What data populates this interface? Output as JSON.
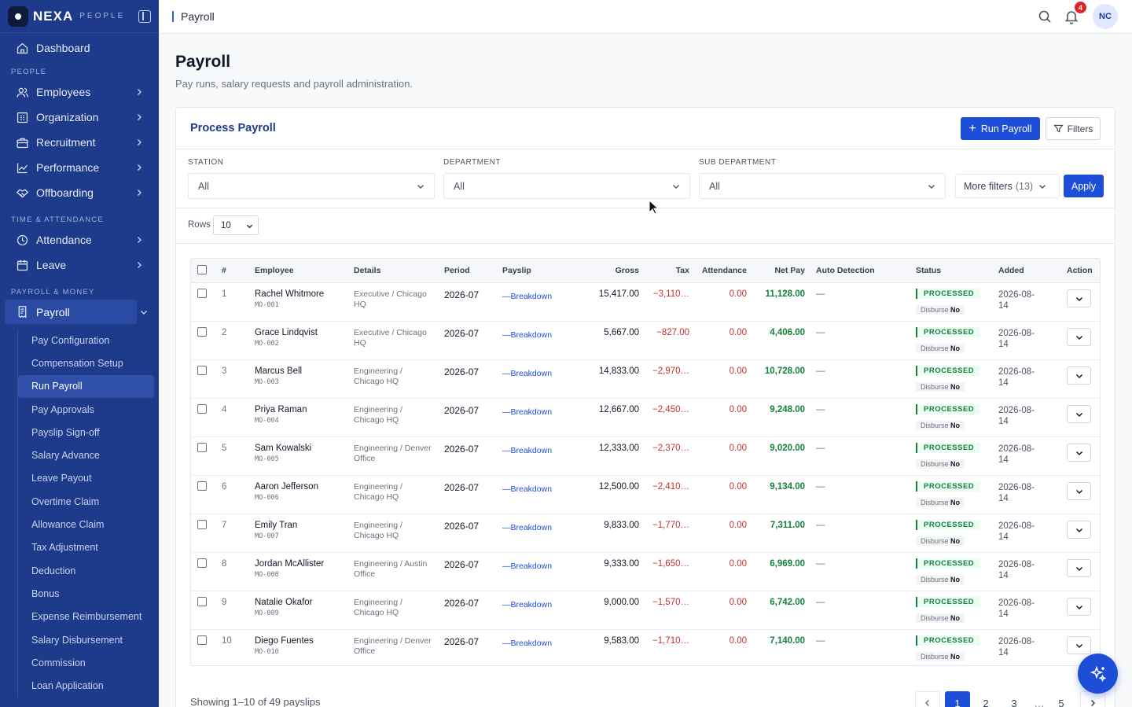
{
  "brand": {
    "name": "NEXA",
    "sub": "PEOPLE"
  },
  "sidebar": {
    "top_items": [
      {
        "label": "Dashboard",
        "icon": "home-icon"
      }
    ],
    "sections": [
      {
        "title": "PEOPLE",
        "items": [
          {
            "label": "Employees",
            "icon": "users-icon"
          },
          {
            "label": "Organization",
            "icon": "building-icon"
          },
          {
            "label": "Recruitment",
            "icon": "briefcase-icon"
          },
          {
            "label": "Performance",
            "icon": "chart-line-icon"
          },
          {
            "label": "Offboarding",
            "icon": "handshake-icon"
          }
        ]
      },
      {
        "title": "TIME & ATTENDANCE",
        "items": [
          {
            "label": "Attendance",
            "icon": "clock-icon"
          },
          {
            "label": "Leave",
            "icon": "calendar-icon"
          }
        ]
      },
      {
        "title": "PAYROLL & MONEY",
        "items": [
          {
            "label": "Payroll",
            "icon": "receipt-icon",
            "active": true
          }
        ]
      }
    ],
    "payroll_sub": [
      "Pay Configuration",
      "Compensation Setup",
      "Run Payroll",
      "Pay Approvals",
      "Payslip Sign-off",
      "Salary Advance",
      "Leave Payout",
      "Overtime Claim",
      "Allowance Claim",
      "Tax Adjustment",
      "Deduction",
      "Bonus",
      "Expense Reimbursement",
      "Salary Disbursement",
      "Commission",
      "Loan Application"
    ],
    "active_sub": "Run Payroll"
  },
  "topbar": {
    "breadcrumb": "Payroll",
    "notif_count": "4",
    "avatar_initials": "NC"
  },
  "page": {
    "title": "Payroll",
    "subtitle": "Pay runs, salary requests and payroll administration."
  },
  "card": {
    "title": "Process Payroll",
    "run_payroll_label": "Run Payroll",
    "filters_label": "Filters",
    "station": {
      "label": "STATION",
      "value": "All"
    },
    "department": {
      "label": "DEPARTMENT",
      "value": "All"
    },
    "sub_department": {
      "label": "SUB DEPARTMENT",
      "value": "All"
    },
    "more_filters": {
      "label": "More filters",
      "count": "(13)"
    },
    "apply_label": "Apply",
    "rows_label": "Rows",
    "rows_value": "10"
  },
  "table": {
    "headers": [
      "#",
      "Employee",
      "Details",
      "Period",
      "Payslip",
      "Gross",
      "Tax",
      "Attendance",
      "Net Pay",
      "Auto Detection",
      "Status",
      "Added",
      "Action"
    ],
    "rows": [
      {
        "n": "1",
        "name": "Rachel Whitmore",
        "code": "MO-001",
        "d1": "Executive / Chicago",
        "d2": "HQ",
        "period": "2026-07",
        "payslip": "—Breakdown",
        "gross": "15,417.00",
        "tax": "−3,110…",
        "att": "0.00",
        "net": "11,128.00",
        "auto": "—",
        "status": "PROCESSED",
        "disburse_label": "Disburse",
        "disburse_value": "No",
        "added1": "2026-08-",
        "added2": "14"
      },
      {
        "n": "2",
        "name": "Grace Lindqvist",
        "code": "MO-002",
        "d1": "Executive / Chicago",
        "d2": "HQ",
        "period": "2026-07",
        "payslip": "—Breakdown",
        "gross": "5,667.00",
        "tax": "−827.00",
        "att": "0.00",
        "net": "4,406.00",
        "auto": "—",
        "status": "PROCESSED",
        "disburse_label": "Disburse",
        "disburse_value": "No",
        "added1": "2026-08-",
        "added2": "14"
      },
      {
        "n": "3",
        "name": "Marcus Bell",
        "code": "MO-003",
        "d1": "Engineering /",
        "d2": "Chicago HQ",
        "period": "2026-07",
        "payslip": "—Breakdown",
        "gross": "14,833.00",
        "tax": "−2,970…",
        "att": "0.00",
        "net": "10,728.00",
        "auto": "—",
        "status": "PROCESSED",
        "disburse_label": "Disburse",
        "disburse_value": "No",
        "added1": "2026-08-",
        "added2": "14"
      },
      {
        "n": "4",
        "name": "Priya Raman",
        "code": "MO-004",
        "d1": "Engineering /",
        "d2": "Chicago HQ",
        "period": "2026-07",
        "payslip": "—Breakdown",
        "gross": "12,667.00",
        "tax": "−2,450…",
        "att": "0.00",
        "net": "9,248.00",
        "auto": "—",
        "status": "PROCESSED",
        "disburse_label": "Disburse",
        "disburse_value": "No",
        "added1": "2026-08-",
        "added2": "14"
      },
      {
        "n": "5",
        "name": "Sam Kowalski",
        "code": "MO-005",
        "d1": "Engineering / Denver",
        "d2": "Office",
        "period": "2026-07",
        "payslip": "—Breakdown",
        "gross": "12,333.00",
        "tax": "−2,370…",
        "att": "0.00",
        "net": "9,020.00",
        "auto": "—",
        "status": "PROCESSED",
        "disburse_label": "Disburse",
        "disburse_value": "No",
        "added1": "2026-08-",
        "added2": "14"
      },
      {
        "n": "6",
        "name": "Aaron Jefferson",
        "code": "MO-006",
        "d1": "Engineering /",
        "d2": "Chicago HQ",
        "period": "2026-07",
        "payslip": "—Breakdown",
        "gross": "12,500.00",
        "tax": "−2,410…",
        "att": "0.00",
        "net": "9,134.00",
        "auto": "—",
        "status": "PROCESSED",
        "disburse_label": "Disburse",
        "disburse_value": "No",
        "added1": "2026-08-",
        "added2": "14"
      },
      {
        "n": "7",
        "name": "Emily Tran",
        "code": "MO-007",
        "d1": "Engineering /",
        "d2": "Chicago HQ",
        "period": "2026-07",
        "payslip": "—Breakdown",
        "gross": "9,833.00",
        "tax": "−1,770…",
        "att": "0.00",
        "net": "7,311.00",
        "auto": "—",
        "status": "PROCESSED",
        "disburse_label": "Disburse",
        "disburse_value": "No",
        "added1": "2026-08-",
        "added2": "14"
      },
      {
        "n": "8",
        "name": "Jordan McAllister",
        "code": "MO-008",
        "d1": "Engineering / Austin",
        "d2": "Office",
        "period": "2026-07",
        "payslip": "—Breakdown",
        "gross": "9,333.00",
        "tax": "−1,650…",
        "att": "0.00",
        "net": "6,969.00",
        "auto": "—",
        "status": "PROCESSED",
        "disburse_label": "Disburse",
        "disburse_value": "No",
        "added1": "2026-08-",
        "added2": "14"
      },
      {
        "n": "9",
        "name": "Natalie Okafor",
        "code": "MO-009",
        "d1": "Engineering /",
        "d2": "Chicago HQ",
        "period": "2026-07",
        "payslip": "—Breakdown",
        "gross": "9,000.00",
        "tax": "−1,570…",
        "att": "0.00",
        "net": "6,742.00",
        "auto": "—",
        "status": "PROCESSED",
        "disburse_label": "Disburse",
        "disburse_value": "No",
        "added1": "2026-08-",
        "added2": "14"
      },
      {
        "n": "10",
        "name": "Diego Fuentes",
        "code": "MO-010",
        "d1": "Engineering / Denver",
        "d2": "Office",
        "period": "2026-07",
        "payslip": "—Breakdown",
        "gross": "9,583.00",
        "tax": "−1,710…",
        "att": "0.00",
        "net": "7,140.00",
        "auto": "—",
        "status": "PROCESSED",
        "disburse_label": "Disburse",
        "disburse_value": "No",
        "added1": "2026-08-",
        "added2": "14"
      }
    ]
  },
  "footer": {
    "showing": "Showing 1–10 of 49 payslips",
    "pages": [
      "1",
      "2",
      "3",
      "…",
      "5"
    ],
    "active_page": "1"
  },
  "colors": {
    "sidebar": "#1e3a8a",
    "accent": "#1d4ed8",
    "positive": "#15803d",
    "negative": "#c53030"
  }
}
